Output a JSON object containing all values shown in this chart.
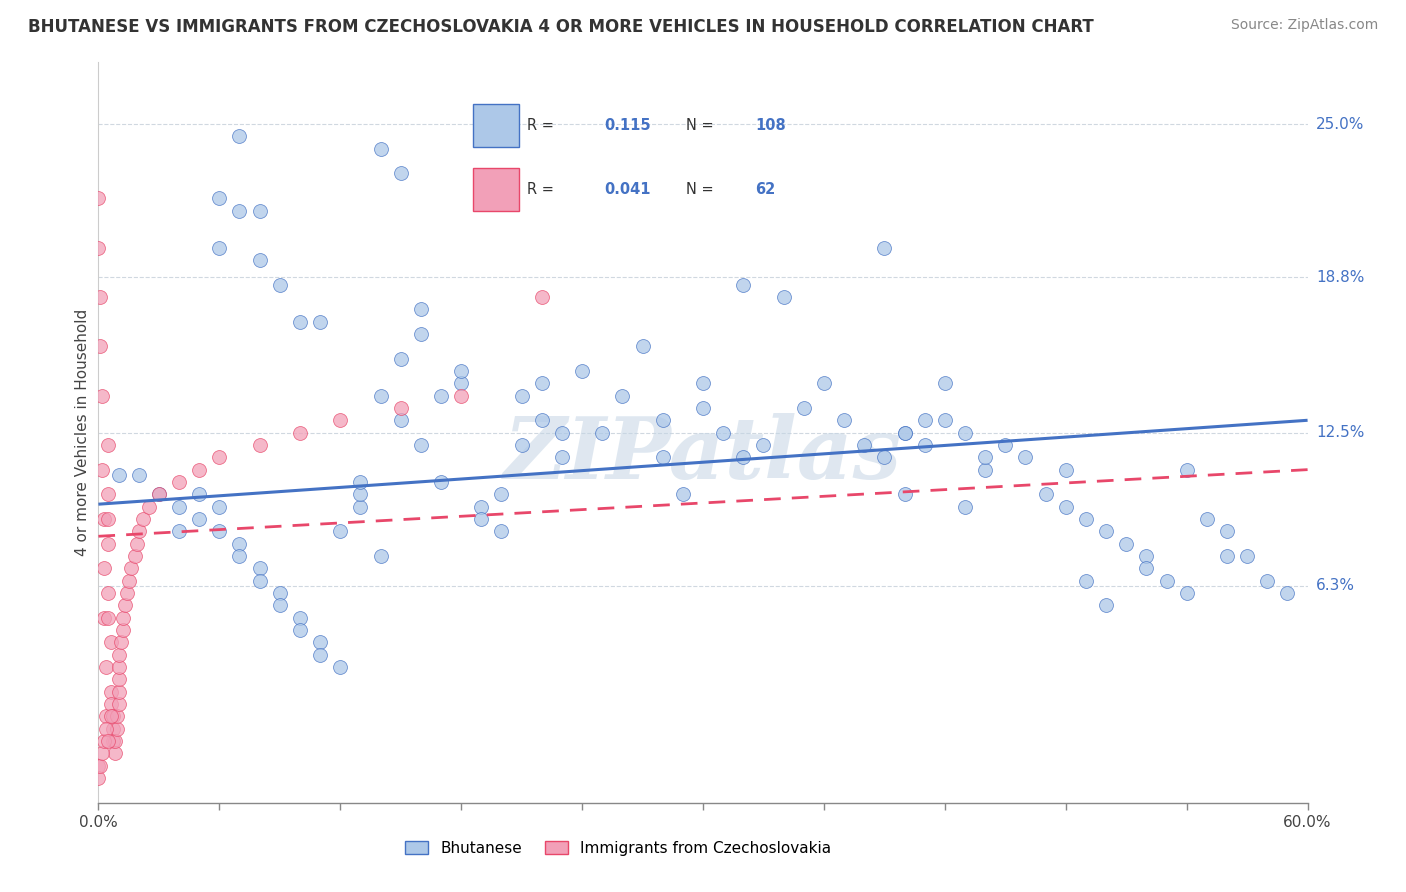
{
  "title": "BHUTANESE VS IMMIGRANTS FROM CZECHOSLOVAKIA 4 OR MORE VEHICLES IN HOUSEHOLD CORRELATION CHART",
  "source": "Source: ZipAtlas.com",
  "ylabel": "4 or more Vehicles in Household",
  "ytick_labels": [
    "25.0%",
    "18.8%",
    "12.5%",
    "6.3%"
  ],
  "ytick_values": [
    0.25,
    0.188,
    0.125,
    0.063
  ],
  "xlim": [
    0.0,
    0.6
  ],
  "ylim": [
    -0.025,
    0.275
  ],
  "xtick_positions": [
    0.0,
    0.06,
    0.12,
    0.18,
    0.24,
    0.3,
    0.36,
    0.42,
    0.48,
    0.54,
    0.6
  ],
  "legend_entries": [
    {
      "label": "Bhutanese",
      "R": "0.115",
      "N": "108"
    },
    {
      "label": "Immigrants from Czechoslovakia",
      "R": "0.041",
      "N": "62"
    }
  ],
  "watermark": "ZIPatlas",
  "blue_scatter_x": [
    0.01,
    0.02,
    0.03,
    0.04,
    0.04,
    0.05,
    0.05,
    0.06,
    0.06,
    0.07,
    0.07,
    0.08,
    0.08,
    0.09,
    0.09,
    0.1,
    0.1,
    0.11,
    0.11,
    0.12,
    0.12,
    0.13,
    0.13,
    0.13,
    0.14,
    0.14,
    0.15,
    0.15,
    0.16,
    0.16,
    0.17,
    0.17,
    0.18,
    0.18,
    0.19,
    0.19,
    0.2,
    0.2,
    0.21,
    0.21,
    0.22,
    0.22,
    0.23,
    0.23,
    0.24,
    0.25,
    0.26,
    0.27,
    0.28,
    0.28,
    0.29,
    0.3,
    0.3,
    0.31,
    0.32,
    0.33,
    0.34,
    0.35,
    0.36,
    0.37,
    0.38,
    0.39,
    0.4,
    0.4,
    0.41,
    0.42,
    0.43,
    0.44,
    0.45,
    0.46,
    0.47,
    0.48,
    0.49,
    0.5,
    0.51,
    0.52,
    0.53,
    0.54,
    0.55,
    0.56,
    0.57,
    0.58,
    0.59,
    0.07,
    0.14,
    0.15,
    0.16,
    0.32,
    0.39,
    0.4,
    0.41,
    0.42,
    0.43,
    0.44,
    0.48,
    0.49,
    0.5,
    0.52,
    0.54,
    0.56,
    0.06,
    0.06,
    0.07,
    0.08,
    0.08,
    0.09,
    0.1,
    0.11
  ],
  "blue_scatter_y": [
    0.108,
    0.108,
    0.1,
    0.095,
    0.085,
    0.09,
    0.1,
    0.085,
    0.095,
    0.08,
    0.075,
    0.07,
    0.065,
    0.06,
    0.055,
    0.05,
    0.045,
    0.04,
    0.035,
    0.03,
    0.085,
    0.095,
    0.1,
    0.105,
    0.075,
    0.14,
    0.155,
    0.13,
    0.12,
    0.165,
    0.105,
    0.14,
    0.145,
    0.15,
    0.095,
    0.09,
    0.1,
    0.085,
    0.14,
    0.12,
    0.13,
    0.145,
    0.115,
    0.125,
    0.15,
    0.125,
    0.14,
    0.16,
    0.13,
    0.115,
    0.1,
    0.145,
    0.135,
    0.125,
    0.115,
    0.12,
    0.18,
    0.135,
    0.145,
    0.13,
    0.12,
    0.115,
    0.1,
    0.125,
    0.13,
    0.145,
    0.095,
    0.11,
    0.12,
    0.115,
    0.1,
    0.095,
    0.09,
    0.085,
    0.08,
    0.075,
    0.065,
    0.11,
    0.09,
    0.085,
    0.075,
    0.065,
    0.06,
    0.215,
    0.24,
    0.23,
    0.175,
    0.185,
    0.2,
    0.125,
    0.12,
    0.13,
    0.125,
    0.115,
    0.11,
    0.065,
    0.055,
    0.07,
    0.06,
    0.075,
    0.2,
    0.22,
    0.245,
    0.215,
    0.195,
    0.185,
    0.17,
    0.17
  ],
  "pink_scatter_x": [
    0.0,
    0.0,
    0.001,
    0.001,
    0.002,
    0.002,
    0.003,
    0.003,
    0.003,
    0.004,
    0.004,
    0.005,
    0.005,
    0.005,
    0.005,
    0.005,
    0.005,
    0.006,
    0.006,
    0.006,
    0.007,
    0.007,
    0.007,
    0.008,
    0.008,
    0.009,
    0.009,
    0.01,
    0.01,
    0.01,
    0.01,
    0.01,
    0.011,
    0.012,
    0.012,
    0.013,
    0.014,
    0.015,
    0.016,
    0.018,
    0.019,
    0.02,
    0.022,
    0.025,
    0.03,
    0.04,
    0.05,
    0.06,
    0.08,
    0.1,
    0.12,
    0.15,
    0.18,
    0.22,
    0.0,
    0.0,
    0.001,
    0.002,
    0.003,
    0.004,
    0.005,
    0.006
  ],
  "pink_scatter_y": [
    0.22,
    0.2,
    0.18,
    0.16,
    0.14,
    0.11,
    0.09,
    0.07,
    0.05,
    0.03,
    0.01,
    0.12,
    0.1,
    0.09,
    0.08,
    0.06,
    0.05,
    0.04,
    0.02,
    0.015,
    0.01,
    0.005,
    0.0,
    -0.005,
    0.0,
    0.005,
    0.01,
    0.015,
    0.02,
    0.025,
    0.03,
    0.035,
    0.04,
    0.045,
    0.05,
    0.055,
    0.06,
    0.065,
    0.07,
    0.075,
    0.08,
    0.085,
    0.09,
    0.095,
    0.1,
    0.105,
    0.11,
    0.115,
    0.12,
    0.125,
    0.13,
    0.135,
    0.14,
    0.18,
    -0.01,
    -0.015,
    -0.01,
    -0.005,
    0.0,
    0.005,
    0.0,
    0.01
  ],
  "blue_line_x": [
    0.0,
    0.6
  ],
  "blue_line_y": [
    0.096,
    0.13
  ],
  "pink_line_x": [
    0.0,
    0.6
  ],
  "pink_line_y": [
    0.083,
    0.11
  ],
  "blue_color": "#4472c4",
  "pink_color": "#e8476a",
  "blue_scatter_color": "#adc8e8",
  "pink_scatter_color": "#f2a0b8",
  "legend_text_color": "#4472c4",
  "grid_color": "#d0d8e0",
  "title_color": "#333333",
  "watermark_color": "#c5d5e5"
}
